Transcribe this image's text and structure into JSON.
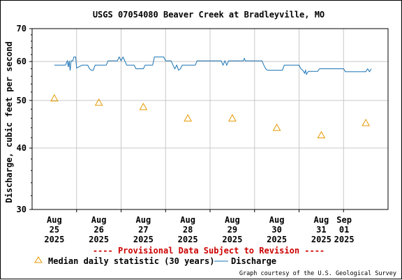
{
  "chart_data": {
    "type": "line",
    "title": "USGS 07054080 Beaver Creek at Bradleyville, MO",
    "ylabel": "Discharge, cubic feet per second",
    "xlabel": "",
    "y_scale": "log",
    "ylim": [
      30,
      70
    ],
    "y_ticks": [
      30,
      40,
      50,
      60,
      70
    ],
    "x_ticks": [
      {
        "month": "Aug",
        "day": "25",
        "year": "2025"
      },
      {
        "month": "Aug",
        "day": "26",
        "year": "2025"
      },
      {
        "month": "Aug",
        "day": "27",
        "year": "2025"
      },
      {
        "month": "Aug",
        "day": "28",
        "year": "2025"
      },
      {
        "month": "Aug",
        "day": "29",
        "year": "2025"
      },
      {
        "month": "Aug",
        "day": "30",
        "year": "2025"
      },
      {
        "month": "Aug",
        "day": "31",
        "year": "2025"
      },
      {
        "month": "Sep",
        "day": "01",
        "year": "2025"
      }
    ],
    "grid": true,
    "series": [
      {
        "name": "Discharge",
        "style": "line",
        "color": "#1a74b5",
        "points": [
          [
            "Aug 24 12:00",
            59.0
          ],
          [
            "Aug 24 18:00",
            59.0
          ],
          [
            "Aug 24 19:00",
            60.2
          ],
          [
            "Aug 24 19:30",
            58.5
          ],
          [
            "Aug 24 20:00",
            60.2
          ],
          [
            "Aug 24 20:30",
            57.5
          ],
          [
            "Aug 24 21:00",
            60.2
          ],
          [
            "Aug 24 22:00",
            60.2
          ],
          [
            "Aug 24 22:30",
            61.3
          ],
          [
            "Aug 24 23:30",
            61.3
          ],
          [
            "Aug 25 00:00",
            58.2
          ],
          [
            "Aug 25 03:00",
            59.0
          ],
          [
            "Aug 25 06:00",
            59.0
          ],
          [
            "Aug 25 07:00",
            58.0
          ],
          [
            "Aug 25 08:00",
            57.6
          ],
          [
            "Aug 25 09:00",
            57.6
          ],
          [
            "Aug 25 10:00",
            59.0
          ],
          [
            "Aug 25 16:00",
            59.0
          ],
          [
            "Aug 25 17:00",
            60.2
          ],
          [
            "Aug 25 22:00",
            60.2
          ],
          [
            "Aug 25 23:00",
            61.3
          ],
          [
            "Aug 26 00:00",
            60.2
          ],
          [
            "Aug 26 01:00",
            61.3
          ],
          [
            "Aug 26 02:00",
            60.2
          ],
          [
            "Aug 26 03:00",
            59.0
          ],
          [
            "Aug 26 07:00",
            59.0
          ],
          [
            "Aug 26 08:00",
            58.0
          ],
          [
            "Aug 26 12:00",
            58.0
          ],
          [
            "Aug 26 13:00",
            59.0
          ],
          [
            "Aug 26 17:00",
            59.0
          ],
          [
            "Aug 26 18:00",
            61.3
          ],
          [
            "Aug 26 23:00",
            61.3
          ],
          [
            "Aug 27 00:00",
            60.2
          ],
          [
            "Aug 27 03:00",
            60.2
          ],
          [
            "Aug 27 04:00",
            59.0
          ],
          [
            "Aug 27 05:00",
            58.0
          ],
          [
            "Aug 27 06:00",
            59.0
          ],
          [
            "Aug 27 07:00",
            57.6
          ],
          [
            "Aug 27 08:00",
            58.0
          ],
          [
            "Aug 27 09:00",
            59.0
          ],
          [
            "Aug 27 16:00",
            59.0
          ],
          [
            "Aug 27 17:00",
            60.2
          ],
          [
            "Aug 28 06:00",
            60.2
          ],
          [
            "Aug 28 07:00",
            59.0
          ],
          [
            "Aug 28 08:00",
            60.2
          ],
          [
            "Aug 28 09:00",
            59.0
          ],
          [
            "Aug 28 10:00",
            60.2
          ],
          [
            "Aug 28 18:00",
            60.2
          ],
          [
            "Aug 28 18:30",
            60.9
          ],
          [
            "Aug 28 19:00",
            60.2
          ],
          [
            "Aug 29 04:00",
            60.2
          ],
          [
            "Aug 29 05:00",
            59.0
          ],
          [
            "Aug 29 06:00",
            58.0
          ],
          [
            "Aug 29 07:00",
            57.6
          ],
          [
            "Aug 29 15:00",
            57.6
          ],
          [
            "Aug 29 16:00",
            59.0
          ],
          [
            "Aug 30 00:00",
            59.0
          ],
          [
            "Aug 30 01:00",
            58.0
          ],
          [
            "Aug 30 02:00",
            57.6
          ],
          [
            "Aug 30 03:00",
            56.8
          ],
          [
            "Aug 30 03:30",
            57.6
          ],
          [
            "Aug 30 04:00",
            56.5
          ],
          [
            "Aug 30 05:00",
            57.3
          ],
          [
            "Aug 30 10:00",
            57.3
          ],
          [
            "Aug 30 11:00",
            58.0
          ],
          [
            "Aug 31 00:00",
            58.0
          ],
          [
            "Aug 31 01:00",
            57.2
          ],
          [
            "Aug 31 12:00",
            57.2
          ],
          [
            "Aug 31 13:00",
            58.0
          ],
          [
            "Aug 31 14:00",
            57.2
          ],
          [
            "Aug 31 15:00",
            58.0
          ]
        ]
      },
      {
        "name": "Median daily statistic (30 years)",
        "style": "marker",
        "marker": "triangle",
        "color": "#e69a00",
        "points": [
          [
            "Aug 24 12:00",
            50.5
          ],
          [
            "Aug 25 12:00",
            49.5
          ],
          [
            "Aug 26 12:00",
            48.5
          ],
          [
            "Aug 27 12:00",
            46.0
          ],
          [
            "Aug 28 12:00",
            46.0
          ],
          [
            "Aug 29 12:00",
            44.0
          ],
          [
            "Aug 30 12:00",
            42.5
          ],
          [
            "Aug 31 12:00",
            45.0
          ]
        ]
      }
    ],
    "axis_start": "Aug 24 00:00",
    "axis_end": "Sep 01 00:00"
  },
  "notice": "---- Provisional Data Subject to Revision ----",
  "legend": {
    "median_label": "Median daily statistic (30 years)",
    "discharge_label": "Discharge"
  },
  "credit": "Graph courtesy of the U.S. Geological Survey",
  "colors": {
    "discharge": "#1a74b5",
    "median": "#e69a00",
    "notice": "#cc0000",
    "grid": "#c8c8c8"
  }
}
